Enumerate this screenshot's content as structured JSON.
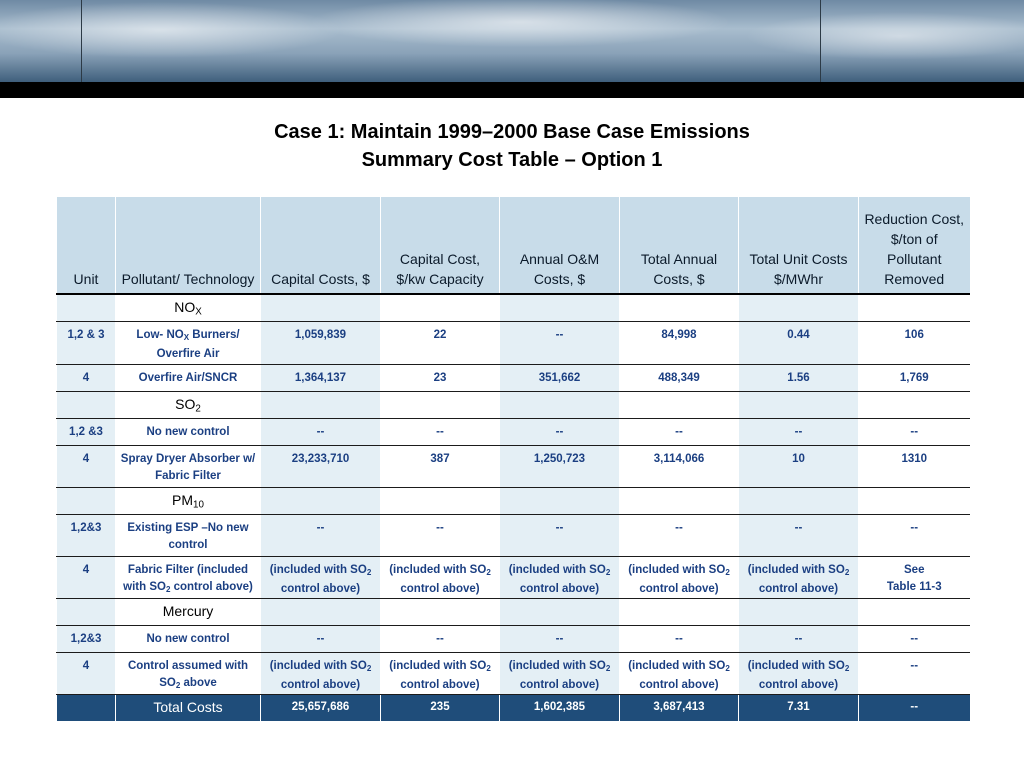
{
  "title": {
    "line1": "Case 1: Maintain 1999–2000 Base Case Emissions",
    "line2": "Summary Cost Table – Option 1"
  },
  "headers": {
    "unit": "Unit",
    "technology": "Pollutant/ Technology",
    "capital_costs": "Capital Costs, $",
    "capital_kw": "Capital Cost, $/kw Capacity",
    "annual_om": "Annual O&M Costs, $",
    "total_annual": "Total Annual Costs, $",
    "total_unit": "Total Unit Costs $/MWhr",
    "reduction_cost": "Reduction Cost, $/ton of Pollutant Removed"
  },
  "sections": {
    "nox": {
      "label": "NO",
      "sub": "X"
    },
    "so2": {
      "label": "SO",
      "sub": "2"
    },
    "pm10": {
      "label": "PM",
      "sub": "10"
    },
    "mercury": {
      "label": "Mercury"
    }
  },
  "rows": {
    "nox_1": {
      "unit": "1,2 & 3",
      "tech_pre": "Low- NO",
      "tech_sub": "X",
      "tech_post": " Burners/ Overfire Air",
      "capital": "1,059,839",
      "per_kw": "22",
      "om": "--",
      "annual": "84,998",
      "unit_cost": "0.44",
      "reduction": "106"
    },
    "nox_2": {
      "unit": "4",
      "tech": "Overfire Air/SNCR",
      "capital": "1,364,137",
      "per_kw": "23",
      "om": "351,662",
      "annual": "488,349",
      "unit_cost": "1.56",
      "reduction": "1,769"
    },
    "so2_1": {
      "unit": "1,2 &3",
      "tech": "No new control",
      "capital": "--",
      "per_kw": "--",
      "om": "--",
      "annual": "--",
      "unit_cost": "--",
      "reduction": "--"
    },
    "so2_2": {
      "unit": "4",
      "tech": "Spray Dryer Absorber w/ Fabric Filter",
      "capital": "23,233,710",
      "per_kw": "387",
      "om": "1,250,723",
      "annual": "3,114,066",
      "unit_cost": "10",
      "reduction": "1310"
    },
    "pm_1": {
      "unit": "1,2&3",
      "tech": "Existing ESP –No new control",
      "capital": "--",
      "per_kw": "--",
      "om": "--",
      "annual": "--",
      "unit_cost": "--",
      "reduction": "--"
    },
    "pm_2": {
      "unit": "4",
      "tech_pre": "Fabric Filter (included with SO",
      "tech_sub": "2",
      "tech_post": " control above)",
      "incl_pre": "(included with SO",
      "incl_sub": "2",
      "incl_post": " control above)",
      "reduction_line1": "See",
      "reduction_line2": "Table 11-3"
    },
    "hg_1": {
      "unit": "1,2&3",
      "tech": "No new control",
      "capital": "--",
      "per_kw": "--",
      "om": "--",
      "annual": "--",
      "unit_cost": "--",
      "reduction": "--"
    },
    "hg_2": {
      "unit": "4",
      "tech_pre": "Control assumed with SO",
      "tech_sub": "2",
      "tech_post": " above",
      "incl_pre": "(included with SO",
      "incl_sub": "2",
      "incl_post": " control above)",
      "reduction": "--"
    }
  },
  "total": {
    "label": "Total Costs",
    "capital": "25,657,686",
    "per_kw": "235",
    "om": "1,602,385",
    "annual": "3,687,413",
    "unit_cost": "7.31",
    "reduction": "--"
  }
}
